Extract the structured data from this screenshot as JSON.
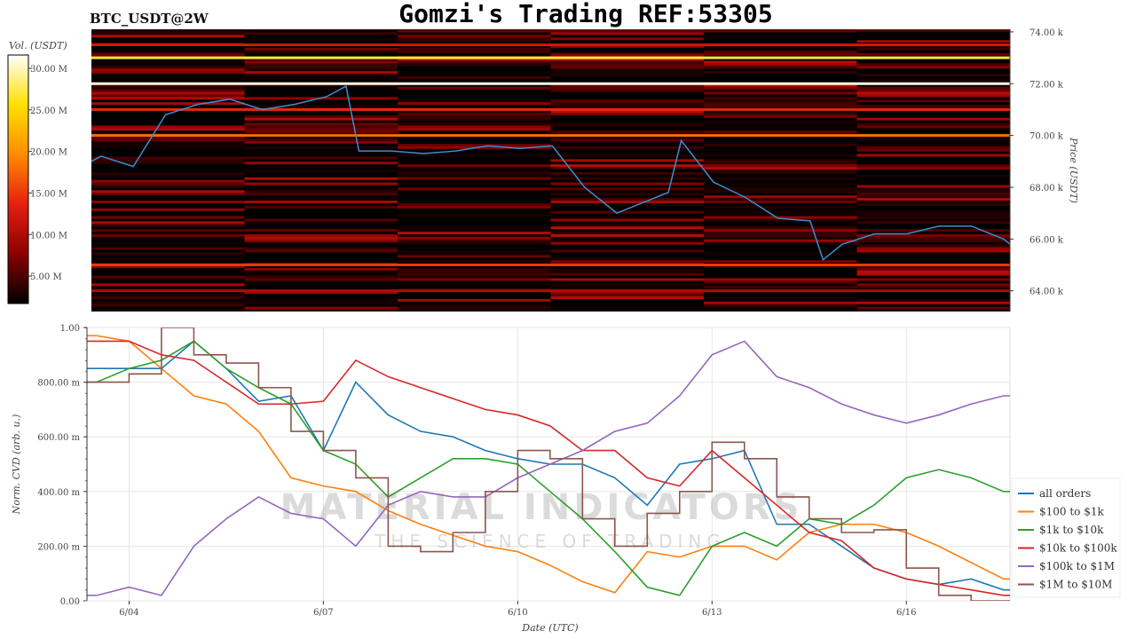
{
  "header": {
    "symbol": "BTC_USDT@2W",
    "title": "Gomzi's Trading REF:53305"
  },
  "watermark": {
    "line1": "MATERIAL INDICATORS",
    "line2": "THE SCIENCE OF TRADING"
  },
  "chart_data": [
    {
      "type": "heatmap",
      "title": "",
      "colorbar": {
        "label": "Vol. (USDT)",
        "ticks": [
          "5.00 M",
          "10.00 M",
          "15.00 M",
          "20.00 M",
          "25.00 M",
          "30.00 M"
        ],
        "tick_values": [
          5,
          10,
          15,
          20,
          25,
          30
        ],
        "range": [
          1.7,
          31.6
        ],
        "colors": [
          "#000000",
          "#8b0000",
          "#e52010",
          "#ff8c00",
          "#ffe000",
          "#ffffff"
        ]
      },
      "ylabel": "Price (USDT)",
      "yticks": [
        "64.00 k",
        "66.00 k",
        "68.00 k",
        "70.00 k",
        "72.00 k",
        "74.00 k"
      ],
      "ytick_values": [
        64,
        66,
        68,
        70,
        72,
        74
      ],
      "ylim": [
        63.2,
        74.1
      ],
      "xlim": [
        3.35,
        17.6
      ],
      "liquidity_levels": [
        {
          "price": 72.0,
          "volume_m": 31
        },
        {
          "price": 73.0,
          "volume_m": 27
        },
        {
          "price": 70.0,
          "volume_m": 18
        },
        {
          "price": 71.0,
          "volume_m": 14
        },
        {
          "price": 65.0,
          "volume_m": 15
        },
        {
          "price": 73.5,
          "volume_m": 12
        },
        {
          "price": 64.0,
          "volume_m": 10
        }
      ],
      "price_line": {
        "color": "#3a8fd0",
        "x": [
          3.35,
          3.5,
          4,
          4.5,
          5,
          5.5,
          6,
          6.5,
          7,
          7.3,
          7.5,
          8,
          8.5,
          9,
          9.5,
          10,
          10.5,
          11,
          11.5,
          12,
          12.3,
          12.5,
          13,
          13.5,
          14,
          14.5,
          14.7,
          15,
          15.5,
          16,
          16.5,
          17,
          17.5,
          17.6
        ],
        "y": [
          69.0,
          69.2,
          68.8,
          70.8,
          71.2,
          71.4,
          71.0,
          71.2,
          71.5,
          71.9,
          69.4,
          69.4,
          69.3,
          69.4,
          69.6,
          69.5,
          69.6,
          68.0,
          67.0,
          67.5,
          67.8,
          69.8,
          68.2,
          67.6,
          66.8,
          66.7,
          65.2,
          65.8,
          66.2,
          66.2,
          66.5,
          66.5,
          66.0,
          65.8
        ]
      }
    },
    {
      "type": "line",
      "xlabel": "Date (UTC)",
      "ylabel": "Norm. CVD (arb. u.)",
      "xticks": [
        "6/04",
        "6/07",
        "6/10",
        "6/13",
        "6/16"
      ],
      "xtick_values": [
        4,
        7,
        10,
        13,
        16
      ],
      "yticks": [
        "0.00",
        "200.00 m",
        "400.00 m",
        "600.00 m",
        "800.00 m",
        "1.00"
      ],
      "ytick_values": [
        0,
        0.2,
        0.4,
        0.6,
        0.8,
        1.0
      ],
      "ylim": [
        0,
        1
      ],
      "xlim": [
        3.35,
        17.6
      ],
      "grid": true,
      "legend_position": "right",
      "x": [
        3.5,
        4,
        4.5,
        5,
        5.5,
        6,
        6.5,
        7,
        7.5,
        8,
        8.5,
        9,
        9.5,
        10,
        10.5,
        11,
        11.5,
        12,
        12.5,
        13,
        13.5,
        14,
        14.5,
        15,
        15.5,
        16,
        16.5,
        17,
        17.5
      ],
      "series": [
        {
          "name": "all orders",
          "color": "#1f77b4",
          "step": false,
          "values": [
            0.85,
            0.85,
            0.85,
            0.95,
            0.85,
            0.73,
            0.75,
            0.55,
            0.8,
            0.68,
            0.62,
            0.6,
            0.55,
            0.52,
            0.5,
            0.5,
            0.45,
            0.35,
            0.5,
            0.52,
            0.55,
            0.28,
            0.28,
            0.2,
            0.12,
            0.08,
            0.06,
            0.08,
            0.04
          ]
        },
        {
          "name": "$100 to $1k",
          "color": "#ff7f0e",
          "step": false,
          "values": [
            0.97,
            0.95,
            0.85,
            0.75,
            0.72,
            0.62,
            0.45,
            0.42,
            0.4,
            0.33,
            0.28,
            0.24,
            0.2,
            0.18,
            0.13,
            0.07,
            0.03,
            0.18,
            0.16,
            0.2,
            0.2,
            0.15,
            0.25,
            0.28,
            0.28,
            0.25,
            0.2,
            0.14,
            0.08
          ]
        },
        {
          "name": "$1k to $10k",
          "color": "#2ca02c",
          "step": false,
          "values": [
            0.8,
            0.85,
            0.88,
            0.95,
            0.85,
            0.78,
            0.72,
            0.55,
            0.5,
            0.38,
            0.45,
            0.52,
            0.52,
            0.5,
            0.4,
            0.3,
            0.18,
            0.05,
            0.02,
            0.2,
            0.25,
            0.2,
            0.3,
            0.28,
            0.35,
            0.45,
            0.48,
            0.45,
            0.4
          ]
        },
        {
          "name": "$10k to $100k",
          "color": "#d62728",
          "step": false,
          "values": [
            0.95,
            0.95,
            0.9,
            0.88,
            0.8,
            0.72,
            0.72,
            0.73,
            0.88,
            0.82,
            0.78,
            0.74,
            0.7,
            0.68,
            0.64,
            0.55,
            0.55,
            0.45,
            0.42,
            0.55,
            0.45,
            0.35,
            0.25,
            0.22,
            0.12,
            0.08,
            0.06,
            0.04,
            0.02
          ]
        },
        {
          "name": "$100k to $1M",
          "color": "#9467bd",
          "step": false,
          "values": [
            0.02,
            0.05,
            0.02,
            0.2,
            0.3,
            0.38,
            0.32,
            0.3,
            0.2,
            0.35,
            0.4,
            0.38,
            0.38,
            0.45,
            0.5,
            0.55,
            0.62,
            0.65,
            0.75,
            0.9,
            0.95,
            0.82,
            0.78,
            0.72,
            0.68,
            0.65,
            0.68,
            0.72,
            0.75
          ]
        },
        {
          "name": "$1M to $10M",
          "color": "#8c564b",
          "step": true,
          "values": [
            0.8,
            0.83,
            1.0,
            0.9,
            0.87,
            0.78,
            0.62,
            0.55,
            0.45,
            0.2,
            0.18,
            0.25,
            0.4,
            0.55,
            0.52,
            0.3,
            0.2,
            0.32,
            0.4,
            0.58,
            0.52,
            0.38,
            0.3,
            0.25,
            0.26,
            0.12,
            0.02,
            0.0,
            0.0
          ]
        }
      ]
    }
  ]
}
